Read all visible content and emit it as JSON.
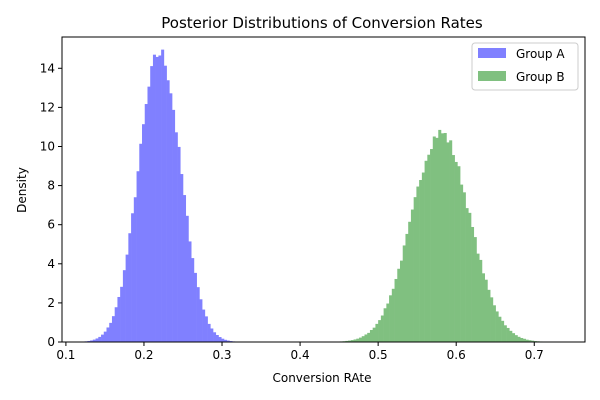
{
  "chart_data": {
    "type": "bar",
    "title": "Posterior Distributions of Conversion Rates",
    "xlabel": "Conversion RAte",
    "ylabel": "Density",
    "xlim": [
      0.095,
      0.765
    ],
    "ylim": [
      0,
      15.6
    ],
    "xticks": [
      "0.1",
      "0.2",
      "0.3",
      "0.4",
      "0.5",
      "0.6",
      "0.7"
    ],
    "yticks": [
      "0",
      "2",
      "4",
      "6",
      "8",
      "10",
      "12",
      "14"
    ],
    "grid": false,
    "legend_position": "top-right",
    "series": [
      {
        "name": "Group A",
        "color": "#8080ff",
        "mean": 0.22,
        "sd": 0.027,
        "peak": 14.8
      },
      {
        "name": "Group B",
        "color": "#80c080",
        "mean": 0.58,
        "sd": 0.037,
        "peak": 10.7
      }
    ]
  }
}
